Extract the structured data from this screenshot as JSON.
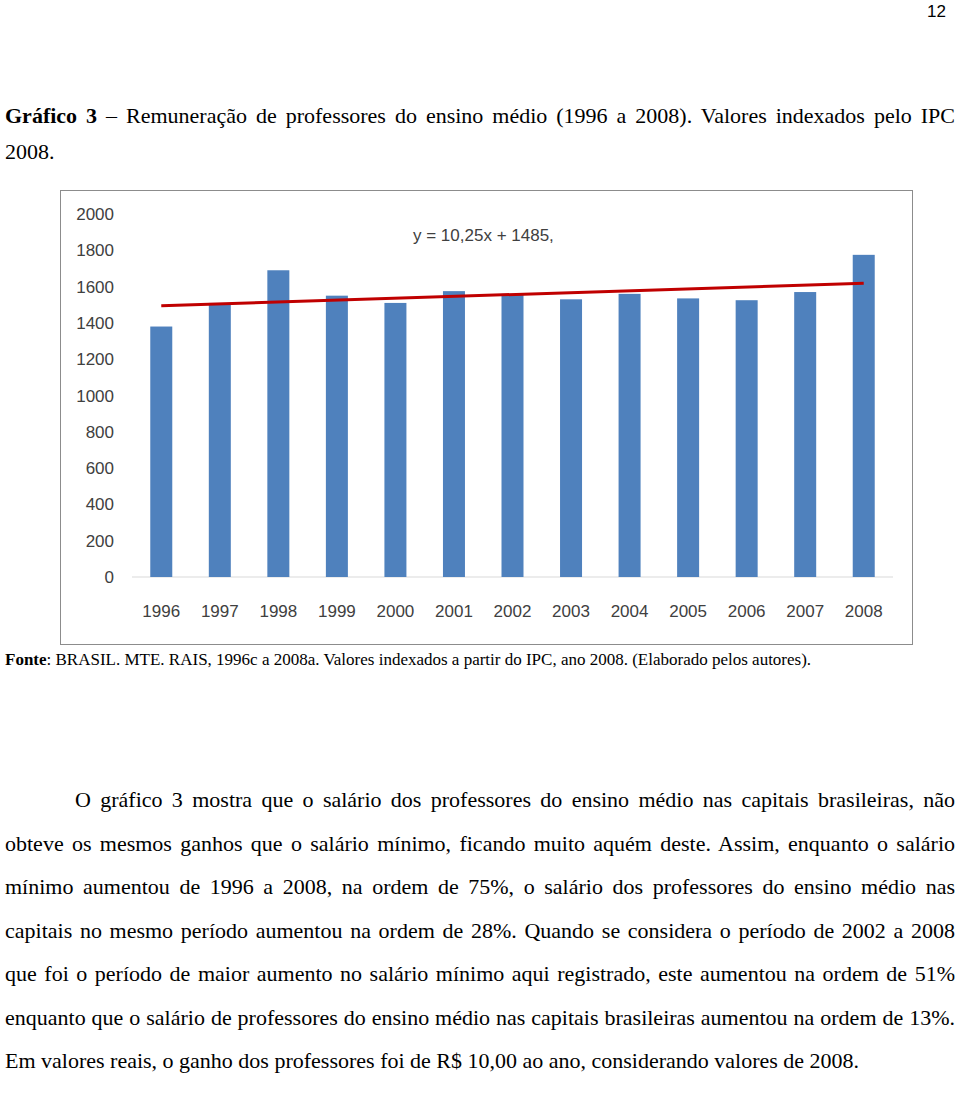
{
  "page_number": "12",
  "caption": {
    "label": "Gráfico 3",
    "text": "– Remuneração de professores do ensino médio (1996 a 2008). Valores indexados pelo IPC 2008."
  },
  "source": {
    "label": "Fonte",
    "text": ": BRASIL. MTE. RAIS, 1996c a 2008a. Valores indexados a partir do IPC, ano 2008. (Elaborado pelos autores)."
  },
  "paragraph": "O gráfico 3 mostra que o salário dos professores do ensino médio nas capitais brasileiras, não obteve os mesmos ganhos que o salário mínimo, ficando muito aquém deste. Assim, enquanto o salário mínimo aumentou de 1996 a 2008, na ordem de 75%, o salário dos professores do ensino médio nas capitais no mesmo período aumentou na ordem de 28%. Quando se considera o período de 2002 a 2008 que foi o período de maior aumento no salário mínimo aqui registrado, este aumentou na ordem de 51% enquanto que o salário de professores do ensino médio nas capitais brasileiras aumentou na ordem de 13%. Em valores reais, o ganho dos professores foi de R$ 10,00 ao ano, considerando valores de 2008.",
  "chart_data": {
    "type": "bar",
    "categories": [
      "1996",
      "1997",
      "1998",
      "1999",
      "2000",
      "2001",
      "2002",
      "2003",
      "2004",
      "2005",
      "2006",
      "2007",
      "2008"
    ],
    "values": [
      1380,
      1510,
      1690,
      1550,
      1510,
      1575,
      1560,
      1530,
      1560,
      1535,
      1525,
      1570,
      1775
    ],
    "color": "#4f81bd",
    "ylim": [
      0,
      2000
    ],
    "yticks": [
      0,
      200,
      400,
      600,
      800,
      1000,
      1200,
      1400,
      1600,
      1800,
      2000
    ],
    "grid": false,
    "annotation": "y = 10,25x + 1485,",
    "trendline": {
      "start": 1495,
      "end": 1618,
      "color": "#c00000"
    }
  }
}
